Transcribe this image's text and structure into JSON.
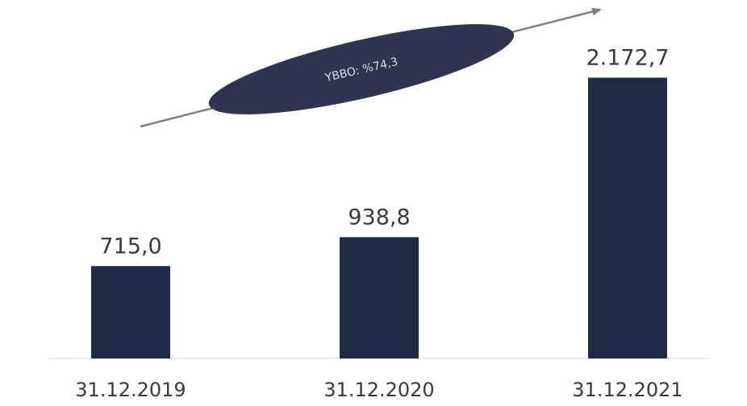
{
  "chart_data": {
    "type": "bar",
    "categories": [
      "31.12.2019",
      "31.12.2020",
      "31.12.2021"
    ],
    "values": [
      715.0,
      938.8,
      2172.7
    ],
    "value_labels": [
      "715,0",
      "938,8",
      "2.172,7"
    ],
    "ylim": [
      0,
      2400
    ],
    "grid": false,
    "legend": "none",
    "bar_color": "#1f2a45",
    "annotation": {
      "text": "YBBO: %74,3",
      "fill": "#2d3550",
      "text_color": "#d9dce3",
      "arrow_color": "#808080"
    }
  }
}
